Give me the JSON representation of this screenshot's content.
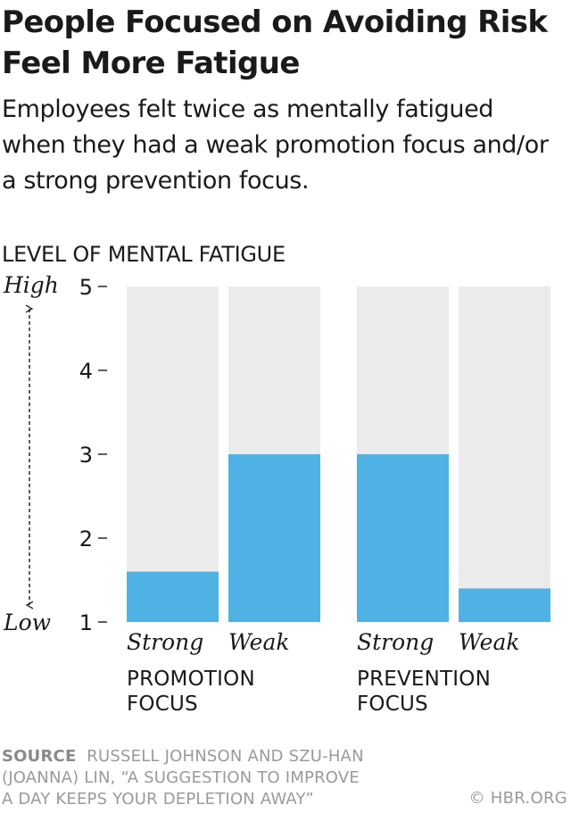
{
  "title": "People Focused on Avoiding Risk Feel More Fatigue",
  "subtitle": "Employees felt twice as mentally fatigued when they had a weak promotion focus and/or a strong prevention focus.",
  "colors": {
    "bar": "#4eb3e4",
    "background_bar": "#ebebeb",
    "text": "#1a1a1a",
    "muted": "#9a9a9a"
  },
  "chart_data": {
    "type": "bar",
    "ylabel": "LEVEL OF MENTAL FATIGUE",
    "ylim": [
      1,
      5
    ],
    "yticks": [
      "1",
      "2",
      "3",
      "4",
      "5"
    ],
    "axis_high_label": "High",
    "axis_low_label": "Low",
    "grid": false,
    "legend": "none",
    "groups": [
      {
        "label_line1": "PROMOTION",
        "label_line2": "FOCUS",
        "categories": [
          "Strong",
          "Weak"
        ],
        "values": [
          1.6,
          3.0
        ]
      },
      {
        "label_line1": "PREVENTION",
        "label_line2": "FOCUS",
        "categories": [
          "Strong",
          "Weak"
        ],
        "values": [
          3.0,
          1.4
        ]
      }
    ]
  },
  "source": {
    "label": "SOURCE",
    "line1": "RUSSELL JOHNSON AND SZU-HAN",
    "line2": "(JOANNA) LIN, “A SUGGESTION TO IMPROVE",
    "line3": "A DAY KEEPS YOUR DEPLETION AWAY”"
  },
  "credit": "© HBR.ORG"
}
